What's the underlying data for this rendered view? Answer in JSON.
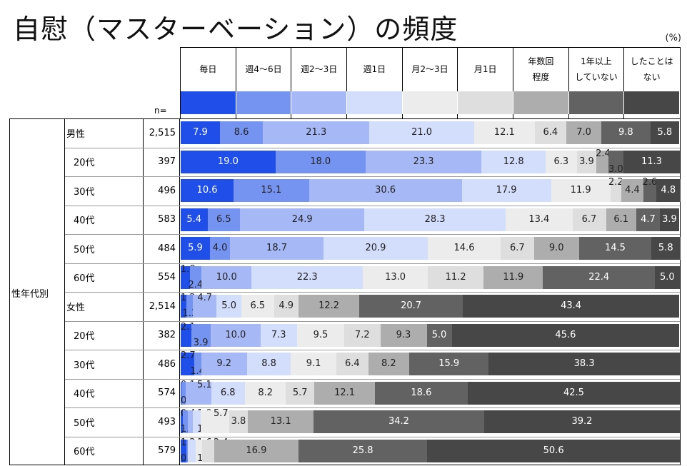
{
  "title": "自慰（マスターベーション）の頻度",
  "unit": "(%)",
  "n_label": "n=",
  "group_label": "性年代別",
  "chart_data": {
    "type": "bar",
    "stacked": true,
    "orientation": "horizontal",
    "title": "自慰（マスターベーション）の頻度",
    "legend": [
      "毎日",
      "週4～6日",
      "週2～3日",
      "週1日",
      "月2～3日",
      "月1日",
      "年数回程度",
      "1年以上していない",
      "したことはない"
    ],
    "legend_lines": [
      [
        "毎日"
      ],
      [
        "週4～6日"
      ],
      [
        "週2～3日"
      ],
      [
        "週1日"
      ],
      [
        "月2～3日"
      ],
      [
        "月1日"
      ],
      [
        "年数回",
        "程度"
      ],
      [
        "1年以上",
        "していない"
      ],
      [
        "したことは",
        "ない"
      ]
    ],
    "colors": [
      "#1f4fe8",
      "#7594f2",
      "#a6b9f6",
      "#d3ddfc",
      "#ececec",
      "#dedede",
      "#adadad",
      "#626262",
      "#474747"
    ],
    "label_colors": [
      "#fff",
      "#222",
      "#222",
      "#222",
      "#222",
      "#222",
      "#222",
      "#fff",
      "#fff"
    ],
    "xlim": [
      0,
      100
    ],
    "rows": [
      {
        "label": "男性",
        "n": "2,515",
        "values": [
          7.9,
          8.6,
          21.3,
          21.0,
          12.1,
          6.4,
          7.0,
          9.8,
          5.8
        ]
      },
      {
        "label": "20代",
        "n": "397",
        "values": [
          19.0,
          18.0,
          23.3,
          12.8,
          6.3,
          3.9,
          2.4,
          3.0,
          11.3
        ]
      },
      {
        "label": "30代",
        "n": "496",
        "values": [
          10.6,
          15.1,
          30.6,
          17.9,
          11.9,
          2.2,
          4.4,
          2.6,
          4.8
        ]
      },
      {
        "label": "40代",
        "n": "583",
        "values": [
          5.4,
          6.5,
          24.9,
          28.3,
          13.4,
          6.7,
          6.1,
          4.7,
          3.9
        ]
      },
      {
        "label": "50代",
        "n": "484",
        "values": [
          5.9,
          4.0,
          18.7,
          20.9,
          14.6,
          6.7,
          9.0,
          14.5,
          5.8
        ]
      },
      {
        "label": "60代",
        "n": "554",
        "values": [
          1.8,
          2.4,
          10.0,
          22.3,
          13.0,
          11.2,
          11.9,
          22.4,
          5.0
        ]
      },
      {
        "label": "女性",
        "n": "2,514",
        "values": [
          1.2,
          1.3,
          4.7,
          5.0,
          6.5,
          4.9,
          12.2,
          20.7,
          43.4
        ]
      },
      {
        "label": "20代",
        "n": "382",
        "values": [
          2.1,
          3.9,
          10.0,
          7.3,
          9.5,
          7.2,
          9.3,
          5.0,
          45.6
        ]
      },
      {
        "label": "30代",
        "n": "486",
        "values": [
          2.7,
          1.4,
          9.2,
          8.8,
          9.1,
          6.4,
          8.2,
          15.9,
          38.3
        ]
      },
      {
        "label": "40代",
        "n": "574",
        "values": [
          0.1,
          0.9,
          5.1,
          6.8,
          8.2,
          5.7,
          12.1,
          18.6,
          42.5
        ]
      },
      {
        "label": "50代",
        "n": "493",
        "values": [
          0.4,
          1.0,
          1.0,
          1.6,
          5.7,
          3.8,
          13.1,
          34.2,
          39.2
        ]
      },
      {
        "label": "60代",
        "n": "579",
        "values": [
          1.2,
          0.2,
          0.0,
          1.6,
          1.3,
          2.4,
          16.9,
          25.8,
          50.6
        ]
      }
    ]
  }
}
